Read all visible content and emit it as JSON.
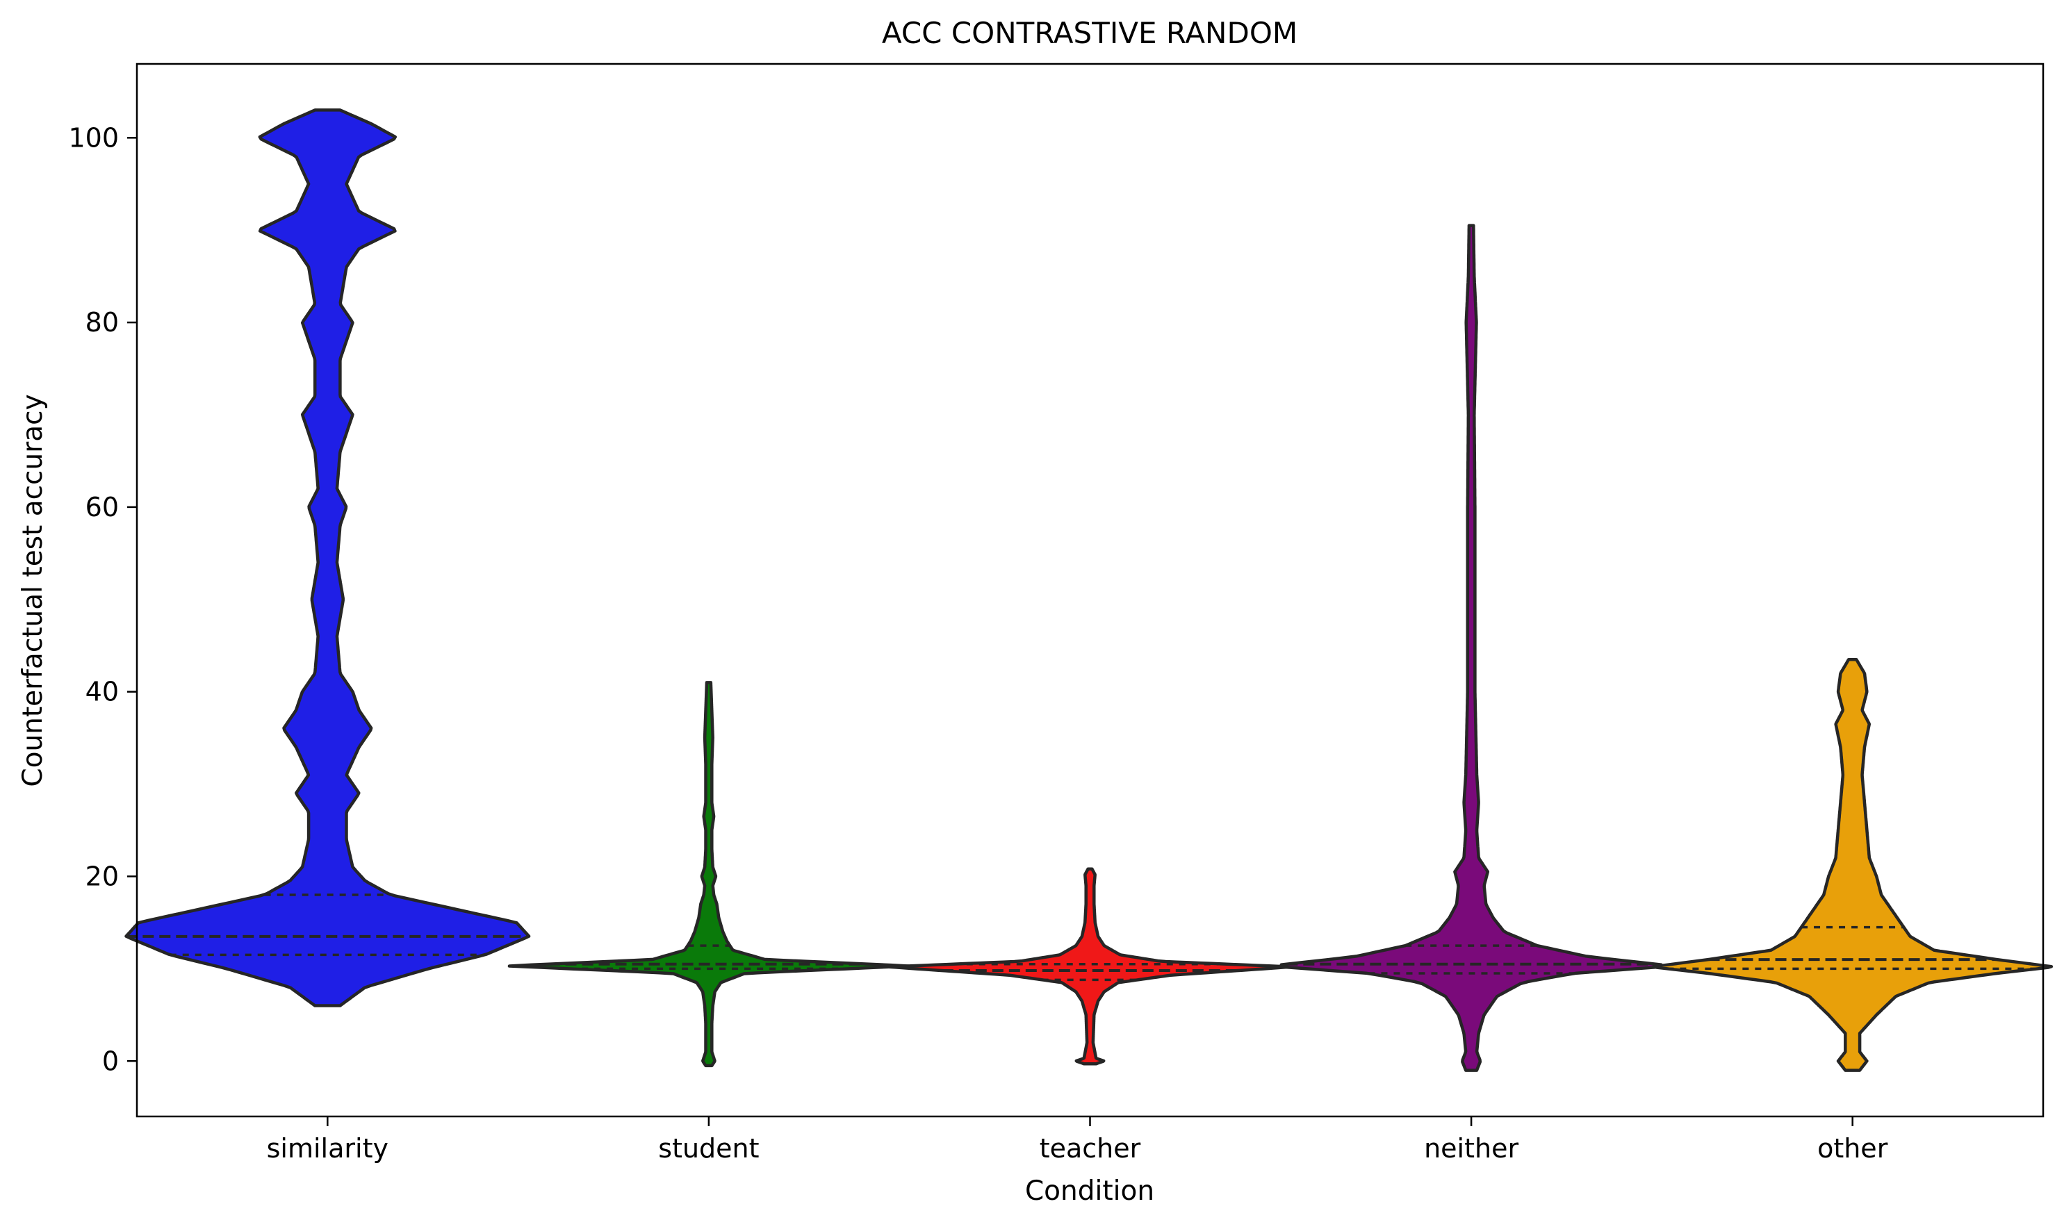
{
  "chart_data": {
    "type": "violin",
    "title": "ACC CONTRASTIVE RANDOM",
    "xlabel": "Condition",
    "ylabel": "Counterfactual test accuracy",
    "ylim": [
      -6,
      108
    ],
    "yticks": [
      0,
      20,
      40,
      60,
      80,
      100
    ],
    "grid": false,
    "inner": "quartile",
    "categories": [
      "similarity",
      "student",
      "teacher",
      "neither",
      "other"
    ],
    "series": [
      {
        "category": "similarity",
        "color": "#1f1fe6",
        "min": 6,
        "q1": 11.5,
        "median": 13.5,
        "q3": 18,
        "max": 103,
        "density": [
          [
            6,
            0.02
          ],
          [
            8,
            0.06
          ],
          [
            10,
            0.16
          ],
          [
            11.5,
            0.25
          ],
          [
            13.5,
            0.32
          ],
          [
            15,
            0.3
          ],
          [
            16.5,
            0.2
          ],
          [
            18,
            0.1
          ],
          [
            19.5,
            0.06
          ],
          [
            21,
            0.04
          ],
          [
            24,
            0.03
          ],
          [
            27,
            0.03
          ],
          [
            29,
            0.05
          ],
          [
            31,
            0.03
          ],
          [
            34,
            0.05
          ],
          [
            36,
            0.07
          ],
          [
            38,
            0.05
          ],
          [
            40,
            0.04
          ],
          [
            42,
            0.02
          ],
          [
            46,
            0.015
          ],
          [
            50,
            0.025
          ],
          [
            54,
            0.015
          ],
          [
            58,
            0.02
          ],
          [
            60,
            0.03
          ],
          [
            62,
            0.015
          ],
          [
            66,
            0.02
          ],
          [
            70,
            0.04
          ],
          [
            72,
            0.02
          ],
          [
            76,
            0.02
          ],
          [
            80,
            0.04
          ],
          [
            82,
            0.02
          ],
          [
            86,
            0.03
          ],
          [
            88,
            0.05
          ],
          [
            90,
            0.11
          ],
          [
            92,
            0.05
          ],
          [
            95,
            0.03
          ],
          [
            98,
            0.05
          ],
          [
            100,
            0.11
          ],
          [
            101.5,
            0.07
          ],
          [
            103,
            0.02
          ]
        ]
      },
      {
        "category": "student",
        "color": "#0a7a0a",
        "min": 0,
        "q1": 10,
        "median": 10.5,
        "q3": 12.5,
        "max": 41,
        "density": [
          [
            -0.5,
            0.015
          ],
          [
            0,
            0.03
          ],
          [
            1,
            0.015
          ],
          [
            4,
            0.015
          ],
          [
            6,
            0.02
          ],
          [
            7.5,
            0.03
          ],
          [
            8.5,
            0.06
          ],
          [
            9.5,
            0.18
          ],
          [
            10.3,
            1.0
          ],
          [
            11,
            0.28
          ],
          [
            12,
            0.12
          ],
          [
            13,
            0.09
          ],
          [
            14,
            0.07
          ],
          [
            15.5,
            0.05
          ],
          [
            17,
            0.04
          ],
          [
            18,
            0.025
          ],
          [
            19,
            0.02
          ],
          [
            20,
            0.035
          ],
          [
            21,
            0.02
          ],
          [
            23,
            0.015
          ],
          [
            25,
            0.015
          ],
          [
            26.5,
            0.025
          ],
          [
            28,
            0.015
          ],
          [
            32,
            0.015
          ],
          [
            35,
            0.02
          ],
          [
            38,
            0.015
          ],
          [
            41,
            0.01
          ]
        ]
      },
      {
        "category": "teacher",
        "color": "#f01818",
        "min": 0,
        "q1": 8.8,
        "median": 9.8,
        "q3": 10.5,
        "max": 20.5,
        "density": [
          [
            -0.3,
            0.03
          ],
          [
            0,
            0.07
          ],
          [
            0.3,
            0.03
          ],
          [
            2,
            0.015
          ],
          [
            5,
            0.02
          ],
          [
            6.5,
            0.04
          ],
          [
            7.5,
            0.07
          ],
          [
            8.5,
            0.14
          ],
          [
            9.3,
            0.4
          ],
          [
            10.2,
            1.0
          ],
          [
            10.8,
            0.35
          ],
          [
            11.5,
            0.15
          ],
          [
            12.5,
            0.07
          ],
          [
            13.5,
            0.04
          ],
          [
            15,
            0.025
          ],
          [
            17,
            0.02
          ],
          [
            19,
            0.02
          ],
          [
            20.2,
            0.025
          ],
          [
            20.8,
            0.01
          ]
        ]
      },
      {
        "category": "neither",
        "color": "#7a0a7a",
        "min": -0.5,
        "q1": 9.5,
        "median": 10.5,
        "q3": 12.5,
        "max": 90.5,
        "density": [
          [
            -1,
            0.015
          ],
          [
            0,
            0.025
          ],
          [
            1,
            0.015
          ],
          [
            3,
            0.02
          ],
          [
            5,
            0.035
          ],
          [
            7,
            0.07
          ],
          [
            8.5,
            0.14
          ],
          [
            9.5,
            0.28
          ],
          [
            10.3,
            0.55
          ],
          [
            11.3,
            0.32
          ],
          [
            12.5,
            0.18
          ],
          [
            14,
            0.09
          ],
          [
            15.5,
            0.06
          ],
          [
            17,
            0.04
          ],
          [
            19,
            0.035
          ],
          [
            20.5,
            0.045
          ],
          [
            22,
            0.02
          ],
          [
            25,
            0.015
          ],
          [
            28,
            0.02
          ],
          [
            31,
            0.015
          ],
          [
            40,
            0.01
          ],
          [
            60,
            0.01
          ],
          [
            70,
            0.008
          ],
          [
            80,
            0.014
          ],
          [
            85,
            0.008
          ],
          [
            90.5,
            0.006
          ]
        ]
      },
      {
        "category": "other",
        "color": "#e8a00a",
        "min": -0.5,
        "q1": 10,
        "median": 11,
        "q3": 14.5,
        "max": 43.5,
        "density": [
          [
            -1,
            0.015
          ],
          [
            0,
            0.03
          ],
          [
            1,
            0.015
          ],
          [
            3,
            0.015
          ],
          [
            5,
            0.05
          ],
          [
            7,
            0.09
          ],
          [
            8.5,
            0.16
          ],
          [
            9.5,
            0.3
          ],
          [
            10.2,
            0.42
          ],
          [
            11,
            0.3
          ],
          [
            12,
            0.17
          ],
          [
            13.5,
            0.12
          ],
          [
            15,
            0.1
          ],
          [
            16.5,
            0.08
          ],
          [
            18,
            0.06
          ],
          [
            20,
            0.05
          ],
          [
            22,
            0.035
          ],
          [
            25,
            0.03
          ],
          [
            28,
            0.025
          ],
          [
            31,
            0.02
          ],
          [
            34,
            0.025
          ],
          [
            36.5,
            0.035
          ],
          [
            38,
            0.02
          ],
          [
            40,
            0.03
          ],
          [
            42,
            0.025
          ],
          [
            43.5,
            0.008
          ]
        ]
      }
    ]
  }
}
